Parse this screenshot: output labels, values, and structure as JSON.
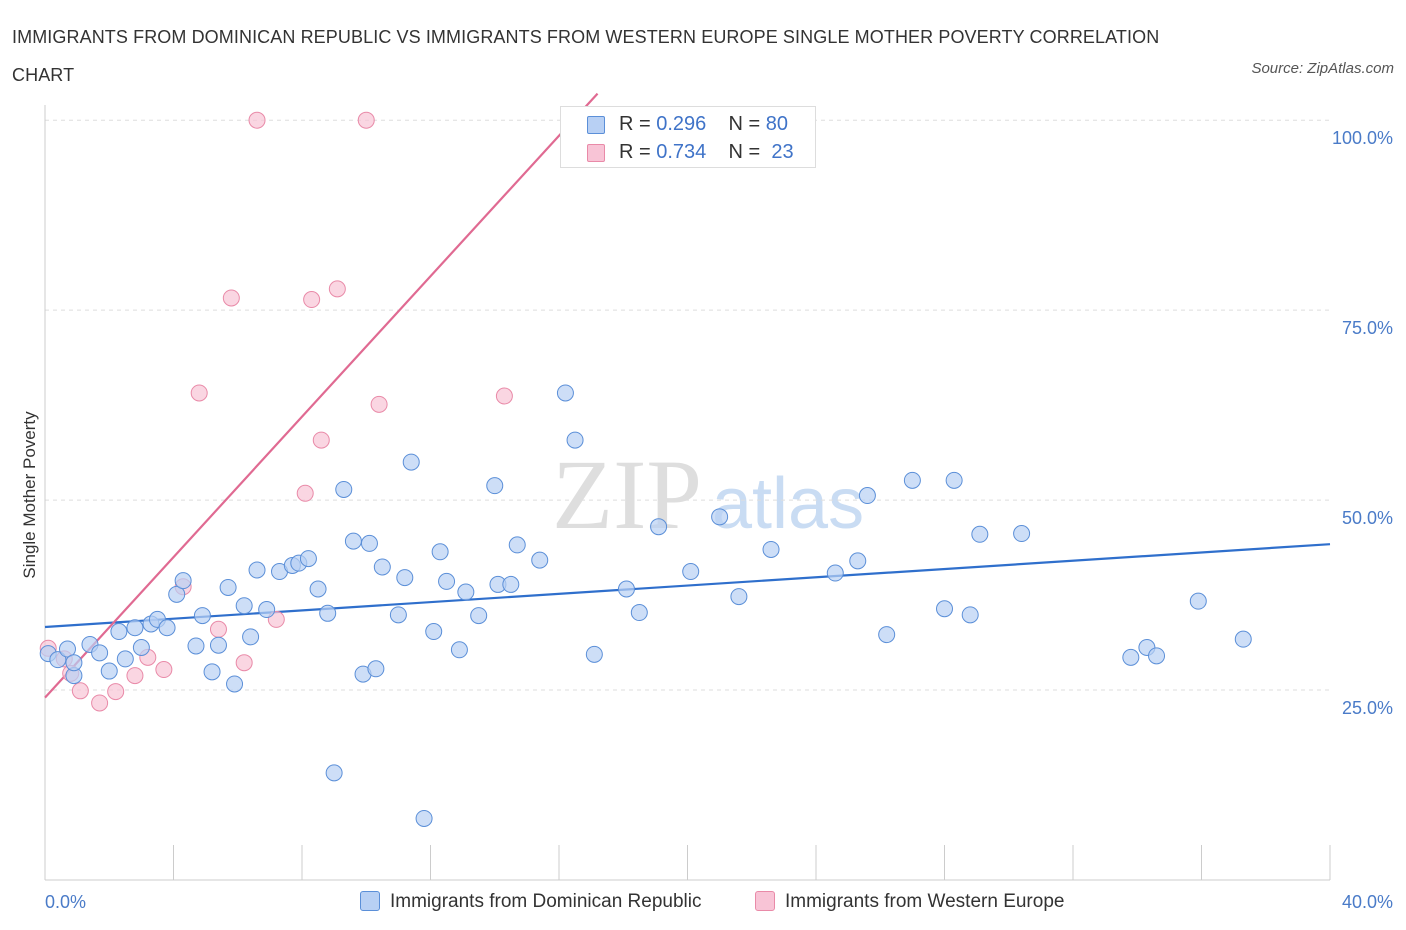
{
  "title": "IMMIGRANTS FROM DOMINICAN REPUBLIC VS IMMIGRANTS FROM WESTERN EUROPE SINGLE MOTHER POVERTY CORRELATION CHART",
  "source": "Source: ZipAtlas.com",
  "watermark": {
    "zip": "ZIP",
    "atlas": "atlas"
  },
  "colors": {
    "blue_fill": "#b8d0f4",
    "blue_stroke": "#5b8fd8",
    "blue_line": "#2f6fcc",
    "pink_fill": "#f8c4d6",
    "pink_stroke": "#e98aa8",
    "pink_line": "#e06a92",
    "tick_text": "#4a7bc8",
    "grid": "#dddddd"
  },
  "legend": {
    "rows": [
      {
        "r_label": "R =",
        "r_value": "0.296",
        "n_label": "N =",
        "n_value": "80"
      },
      {
        "r_label": "R =",
        "r_value": "0.734",
        "n_label": "N =",
        "n_value": "23"
      }
    ]
  },
  "chart_data": {
    "type": "scatter",
    "title": "IMMIGRANTS FROM DOMINICAN REPUBLIC VS IMMIGRANTS FROM WESTERN EUROPE SINGLE MOTHER POVERTY CORRELATION CHART",
    "xlabel": "",
    "ylabel": "Single Mother Poverty",
    "xlim": [
      0,
      40
    ],
    "ylim": [
      0,
      102
    ],
    "x_tick_labels": [
      "0.0%",
      "40.0%"
    ],
    "y_ticks": [
      25,
      50,
      75,
      100
    ],
    "y_tick_labels": [
      "25.0%",
      "50.0%",
      "75.0%",
      "100.0%"
    ],
    "grid": true,
    "legend_position": "bottom",
    "series": [
      {
        "name": "Immigrants from Dominican Republic",
        "color": "#5b8fd8",
        "R": 0.296,
        "N": 80,
        "trend": {
          "x": [
            0,
            40
          ],
          "y": [
            33.3,
            44.2
          ]
        },
        "points": [
          [
            0.1,
            29.8
          ],
          [
            0.4,
            29.0
          ],
          [
            0.7,
            30.4
          ],
          [
            0.9,
            26.9
          ],
          [
            0.9,
            28.6
          ],
          [
            1.4,
            31.0
          ],
          [
            1.7,
            29.9
          ],
          [
            2.0,
            27.5
          ],
          [
            2.3,
            32.7
          ],
          [
            2.5,
            29.1
          ],
          [
            2.8,
            33.2
          ],
          [
            3.0,
            30.6
          ],
          [
            3.3,
            33.7
          ],
          [
            3.5,
            34.3
          ],
          [
            3.8,
            33.2
          ],
          [
            4.1,
            37.6
          ],
          [
            4.3,
            39.4
          ],
          [
            4.7,
            30.8
          ],
          [
            4.9,
            34.8
          ],
          [
            5.2,
            27.4
          ],
          [
            5.4,
            30.9
          ],
          [
            5.7,
            38.5
          ],
          [
            5.9,
            25.8
          ],
          [
            6.2,
            36.1
          ],
          [
            6.4,
            32.0
          ],
          [
            6.6,
            40.8
          ],
          [
            6.9,
            35.6
          ],
          [
            7.3,
            40.6
          ],
          [
            7.7,
            41.4
          ],
          [
            7.9,
            41.7
          ],
          [
            8.2,
            42.3
          ],
          [
            8.5,
            38.3
          ],
          [
            8.8,
            35.1
          ],
          [
            9.0,
            14.1
          ],
          [
            9.3,
            51.4
          ],
          [
            9.6,
            44.6
          ],
          [
            9.9,
            27.1
          ],
          [
            10.1,
            44.3
          ],
          [
            10.3,
            27.8
          ],
          [
            10.5,
            41.2
          ],
          [
            11.0,
            34.9
          ],
          [
            11.2,
            39.8
          ],
          [
            11.4,
            55.0
          ],
          [
            11.8,
            8.1
          ],
          [
            12.1,
            32.7
          ],
          [
            12.3,
            43.2
          ],
          [
            12.5,
            39.3
          ],
          [
            12.9,
            30.3
          ],
          [
            13.1,
            37.9
          ],
          [
            13.5,
            34.8
          ],
          [
            14.0,
            51.9
          ],
          [
            14.1,
            38.9
          ],
          [
            14.5,
            38.9
          ],
          [
            14.7,
            44.1
          ],
          [
            15.4,
            42.1
          ],
          [
            16.2,
            64.1
          ],
          [
            16.5,
            57.9
          ],
          [
            17.1,
            29.7
          ],
          [
            18.1,
            38.3
          ],
          [
            18.5,
            35.2
          ],
          [
            19.1,
            46.5
          ],
          [
            20.1,
            40.6
          ],
          [
            21.0,
            47.8
          ],
          [
            21.6,
            37.3
          ],
          [
            22.6,
            43.5
          ],
          [
            24.6,
            40.4
          ],
          [
            25.3,
            42.0
          ],
          [
            25.6,
            50.6
          ],
          [
            26.2,
            32.3
          ],
          [
            27.0,
            52.6
          ],
          [
            28.0,
            35.7
          ],
          [
            28.3,
            52.6
          ],
          [
            28.8,
            34.9
          ],
          [
            29.1,
            45.5
          ],
          [
            30.4,
            45.6
          ],
          [
            33.8,
            29.3
          ],
          [
            34.3,
            30.6
          ],
          [
            34.6,
            29.5
          ],
          [
            35.9,
            36.7
          ],
          [
            37.3,
            31.7
          ]
        ]
      },
      {
        "name": "Immigrants from Western Europe",
        "color": "#e98aa8",
        "R": 0.734,
        "N": 23,
        "trend": {
          "x": [
            0,
            17.2
          ],
          "y": [
            24.0,
            103.5
          ]
        },
        "points": [
          [
            0.1,
            30.5
          ],
          [
            0.6,
            29.1
          ],
          [
            0.8,
            27.2
          ],
          [
            1.1,
            24.9
          ],
          [
            1.7,
            23.3
          ],
          [
            2.2,
            24.8
          ],
          [
            2.8,
            26.9
          ],
          [
            3.2,
            29.3
          ],
          [
            3.7,
            27.7
          ],
          [
            4.3,
            38.6
          ],
          [
            4.8,
            64.1
          ],
          [
            5.4,
            33.0
          ],
          [
            5.8,
            76.6
          ],
          [
            6.2,
            28.6
          ],
          [
            6.6,
            100.0
          ],
          [
            7.2,
            34.3
          ],
          [
            8.1,
            50.9
          ],
          [
            8.3,
            76.4
          ],
          [
            8.6,
            57.9
          ],
          [
            9.1,
            77.8
          ],
          [
            10.0,
            100.0
          ],
          [
            10.4,
            62.6
          ],
          [
            14.3,
            63.7
          ]
        ]
      }
    ]
  },
  "legend_bottom": {
    "items": [
      "Immigrants from Dominican Republic",
      "Immigrants from Western Europe"
    ]
  }
}
